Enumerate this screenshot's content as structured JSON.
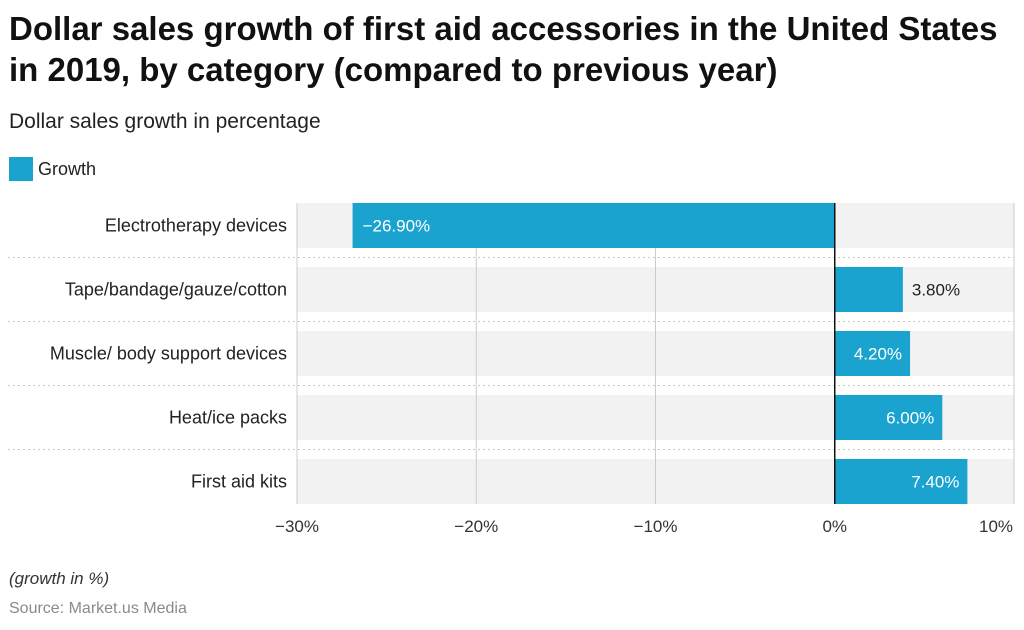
{
  "title": "Dollar sales growth of first aid accessories in the United States in 2019, by category (compared to previous year)",
  "subtitle": "Dollar sales growth in percentage",
  "legend": {
    "label": "Growth"
  },
  "footnote": "(growth in %)",
  "source": "Source: Market.us Media",
  "colors": {
    "bar": "#1ba3cf",
    "band": "#f2f2f2",
    "grid": "#cccccc",
    "zero": "#111111"
  },
  "chart_data": {
    "type": "bar",
    "orientation": "horizontal",
    "categories": [
      "Electrotherapy devices",
      "Tape/bandage/gauze/cotton",
      "Muscle/ body support devices",
      "Heat/ice packs",
      "First aid kits"
    ],
    "series": [
      {
        "name": "Growth",
        "values": [
          -26.9,
          3.8,
          4.2,
          6.0,
          7.4
        ],
        "labels": [
          "−26.90%",
          "3.80%",
          "4.20%",
          "6.00%",
          "7.40%"
        ]
      }
    ],
    "xlim": [
      -30,
      10
    ],
    "ticks": [
      -30,
      -20,
      -10,
      0,
      10
    ],
    "tick_labels": [
      "−30%",
      "−20%",
      "−10%",
      "0%",
      "10%"
    ],
    "grid": true,
    "legend_position": "top-left"
  }
}
